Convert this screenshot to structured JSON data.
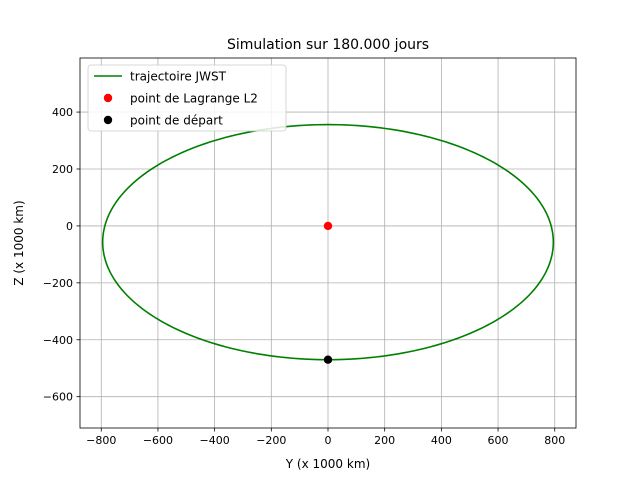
{
  "chart_data": {
    "type": "line",
    "title": "Simulation sur 180.000 jours",
    "xlabel": "Y (x 1000 km)",
    "ylabel": "Z (x 1000 km)",
    "xlim": [
      -875,
      875
    ],
    "ylim": [
      -710,
      590
    ],
    "xticks": [
      -800,
      -600,
      -400,
      -200,
      0,
      200,
      400,
      600,
      800
    ],
    "yticks": [
      -600,
      -400,
      -200,
      0,
      200,
      400
    ],
    "grid": true,
    "legend_position": "upper-left",
    "series": [
      {
        "name": "trajectoire JWST",
        "kind": "line",
        "color": "#008000",
        "shape": "ellipse",
        "center": [
          0,
          -57
        ],
        "semi_axes": [
          795,
          413
        ]
      },
      {
        "name": "point de Lagrange L2",
        "kind": "point",
        "color": "#ff0000",
        "points": [
          [
            0,
            0
          ]
        ]
      },
      {
        "name": "point de départ",
        "kind": "point",
        "color": "#000000",
        "points": [
          [
            0,
            -470
          ]
        ]
      }
    ]
  }
}
